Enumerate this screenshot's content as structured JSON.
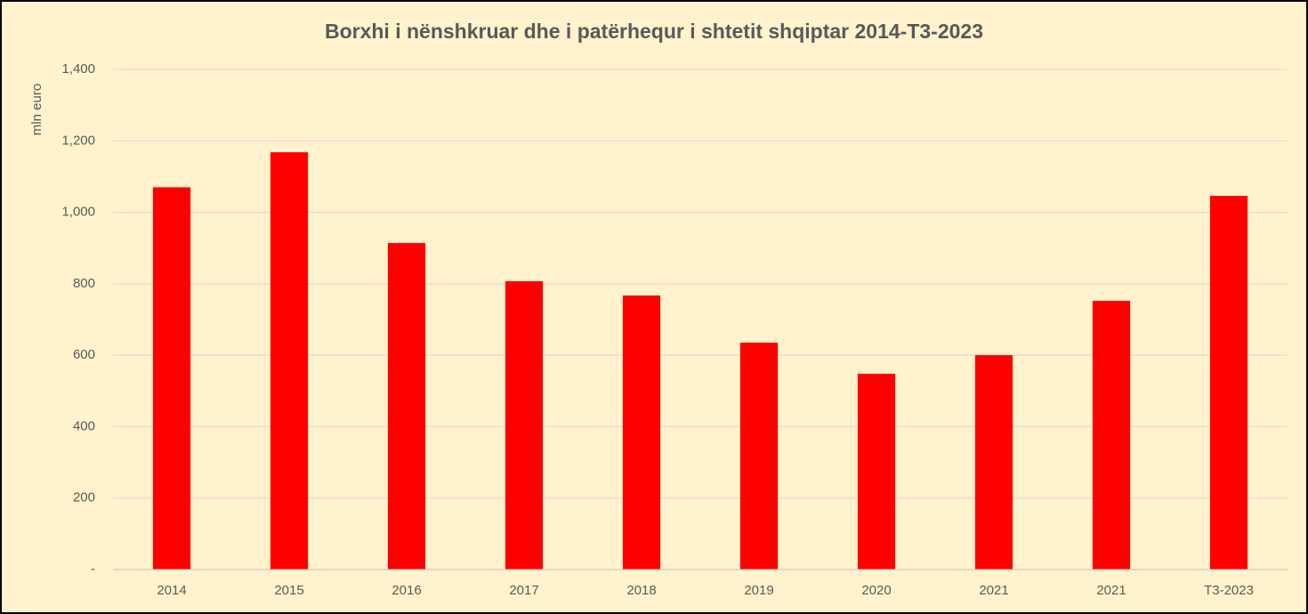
{
  "chart_data": {
    "type": "bar",
    "title": "Borxhi i nënshkruar dhe i patërhequr i shtetit shqiptar 2014-T3-2023",
    "y_label": "mln euro",
    "categories": [
      "2014",
      "2015",
      "2016",
      "2017",
      "2018",
      "2019",
      "2020",
      "2021",
      "2021",
      "T3-2023"
    ],
    "values": [
      1070,
      1168,
      914,
      807,
      767,
      635,
      548,
      600,
      752,
      1046
    ],
    "color": "#ff0000",
    "ylim": [
      0,
      1400
    ],
    "yticks": [
      {
        "value": 0,
        "label": "-"
      },
      200,
      400,
      600,
      800,
      {
        "value": 1000,
        "label": "1,000"
      },
      {
        "value": 1200,
        "label": "1,200"
      },
      {
        "value": 1400,
        "label": "1,400"
      }
    ],
    "grid": true
  }
}
